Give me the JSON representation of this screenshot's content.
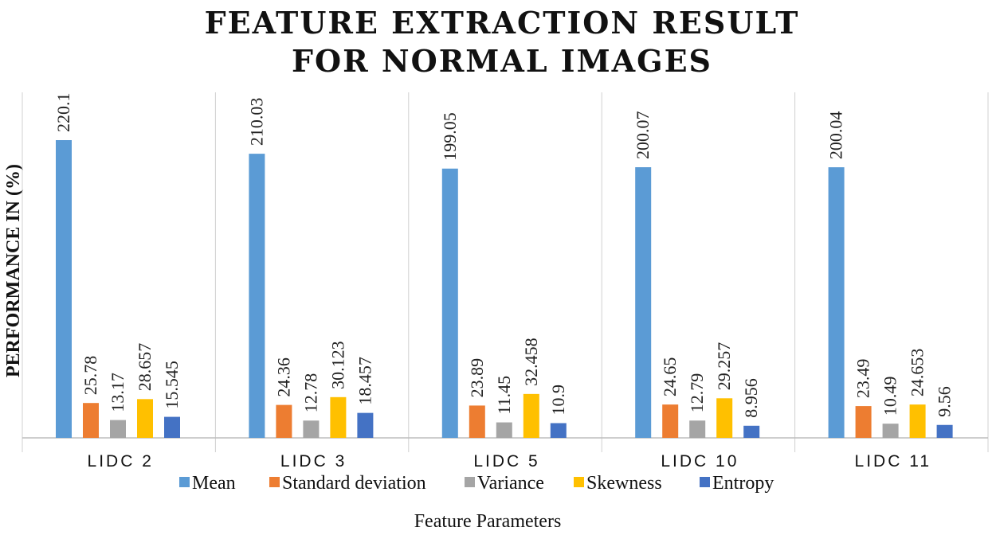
{
  "chart_data": {
    "type": "bar",
    "title_lines": [
      "FEATURE EXTRACTION RESULT",
      "FOR NORMAL IMAGES"
    ],
    "xlabel": "Feature Parameters",
    "ylabel": "PERFORMANCE IN (%)",
    "categories": [
      "LIDC  2",
      "LIDC  3",
      "LIDC  5",
      "LIDC  10",
      "LIDC  11"
    ],
    "ylim": [
      0,
      240
    ],
    "grid": false,
    "legend_position": "bottom",
    "series": [
      {
        "name": "Mean",
        "color": "#5B9BD5",
        "values": [
          220.1,
          210.03,
          199.05,
          200.07,
          200.04
        ],
        "labels": [
          "220.1",
          "210.03",
          "199.05",
          "200.07",
          "200.04"
        ]
      },
      {
        "name": "Standard deviation",
        "color": "#ED7D31",
        "values": [
          25.78,
          24.36,
          23.89,
          24.65,
          23.49
        ],
        "labels": [
          "25.78",
          "24.36",
          "23.89",
          "24.65",
          "23.49"
        ]
      },
      {
        "name": "Variance",
        "color": "#A5A5A5",
        "values": [
          13.17,
          12.78,
          11.45,
          12.79,
          10.49
        ],
        "labels": [
          "13.17",
          "12.78",
          "11.45",
          "12.79",
          "10.49"
        ]
      },
      {
        "name": "Skewness",
        "color": "#FFC000",
        "values": [
          28.657,
          30.123,
          32.458,
          29.257,
          24.653
        ],
        "labels": [
          "28.657",
          "30.123",
          "32.458",
          "29.257",
          "24.653"
        ]
      },
      {
        "name": "Entropy",
        "color": "#4472C4",
        "values": [
          15.545,
          18.457,
          10.9,
          8.956,
          9.56
        ],
        "labels": [
          "15.545",
          "18.457",
          "10.9",
          "8.956",
          "9.56"
        ]
      }
    ]
  }
}
